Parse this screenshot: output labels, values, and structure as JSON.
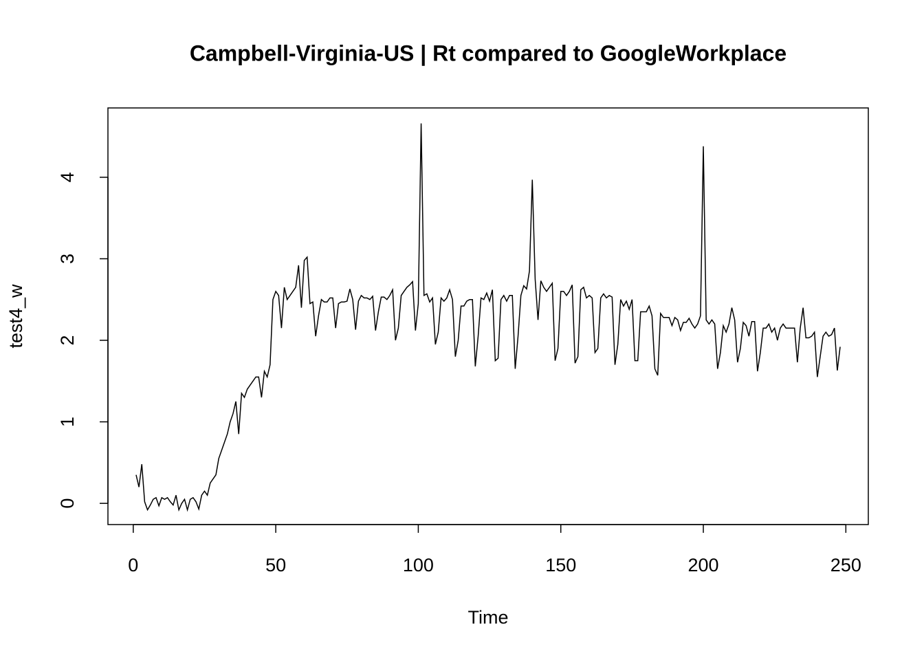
{
  "chart_data": {
    "type": "line",
    "title": "Campbell-Virginia-US | Rt compared to GoogleWorkplace",
    "x_label": "Time",
    "y_label": "test4_w",
    "color": "#000000",
    "xlim": [
      -8.88,
      257.88
    ],
    "ylim": [
      -0.26,
      4.85
    ],
    "xticks": [
      0,
      50,
      100,
      150,
      200,
      250
    ],
    "yticks": [
      0,
      1,
      2,
      3,
      4
    ],
    "x": [
      1,
      2,
      3,
      4,
      5,
      6,
      7,
      8,
      9,
      10,
      11,
      12,
      13,
      14,
      15,
      16,
      17,
      18,
      19,
      20,
      21,
      22,
      23,
      24,
      25,
      26,
      27,
      28,
      29,
      30,
      31,
      32,
      33,
      34,
      35,
      36,
      37,
      38,
      39,
      40,
      41,
      42,
      43,
      44,
      45,
      46,
      47,
      48,
      49,
      50,
      51,
      52,
      53,
      54,
      55,
      56,
      57,
      58,
      59,
      60,
      61,
      62,
      63,
      64,
      65,
      66,
      67,
      68,
      69,
      70,
      71,
      72,
      73,
      74,
      75,
      76,
      77,
      78,
      79,
      80,
      81,
      82,
      83,
      84,
      85,
      86,
      87,
      88,
      89,
      90,
      91,
      92,
      93,
      94,
      95,
      96,
      97,
      98,
      99,
      100,
      101,
      102,
      103,
      104,
      105,
      106,
      107,
      108,
      109,
      110,
      111,
      112,
      113,
      114,
      115,
      116,
      117,
      118,
      119,
      120,
      121,
      122,
      123,
      124,
      125,
      126,
      127,
      128,
      129,
      130,
      131,
      132,
      133,
      134,
      135,
      136,
      137,
      138,
      139,
      140,
      141,
      142,
      143,
      144,
      145,
      146,
      147,
      148,
      149,
      150,
      151,
      152,
      153,
      154,
      155,
      156,
      157,
      158,
      159,
      160,
      161,
      162,
      163,
      164,
      165,
      166,
      167,
      168,
      169,
      170,
      171,
      172,
      173,
      174,
      175,
      176,
      177,
      178,
      179,
      180,
      181,
      182,
      183,
      184,
      185,
      186,
      187,
      188,
      189,
      190,
      191,
      192,
      193,
      194,
      195,
      196,
      197,
      198,
      199,
      200,
      201,
      202,
      203,
      204,
      205,
      206,
      207,
      208,
      209,
      210,
      211,
      212,
      213,
      214,
      215,
      216,
      217,
      218,
      219,
      220,
      221,
      222,
      223,
      224,
      225,
      226,
      227,
      228,
      229,
      230,
      231,
      232,
      233,
      234,
      235,
      236,
      237,
      238,
      239,
      240,
      241,
      242,
      243,
      244,
      245,
      246,
      247,
      248
    ],
    "values": [
      0.35,
      0.2,
      0.48,
      0.02,
      -0.08,
      -0.02,
      0.05,
      0.07,
      -0.03,
      0.07,
      0.05,
      0.07,
      0.02,
      -0.02,
      0.1,
      -0.08,
      0.0,
      0.05,
      -0.08,
      0.05,
      0.07,
      0.02,
      -0.07,
      0.1,
      0.15,
      0.1,
      0.25,
      0.3,
      0.35,
      0.55,
      0.65,
      0.75,
      0.85,
      1.0,
      1.1,
      1.25,
      0.85,
      1.35,
      1.3,
      1.4,
      1.45,
      1.5,
      1.55,
      1.55,
      1.3,
      1.62,
      1.55,
      1.7,
      2.5,
      2.6,
      2.55,
      2.15,
      2.65,
      2.5,
      2.55,
      2.6,
      2.65,
      2.92,
      2.4,
      2.98,
      3.02,
      2.45,
      2.47,
      2.05,
      2.3,
      2.5,
      2.47,
      2.47,
      2.52,
      2.52,
      2.15,
      2.45,
      2.47,
      2.47,
      2.48,
      2.63,
      2.5,
      2.13,
      2.48,
      2.55,
      2.52,
      2.52,
      2.5,
      2.54,
      2.12,
      2.35,
      2.53,
      2.53,
      2.5,
      2.55,
      2.62,
      2.0,
      2.15,
      2.55,
      2.6,
      2.65,
      2.68,
      2.72,
      2.12,
      2.45,
      4.66,
      2.55,
      2.57,
      2.47,
      2.52,
      1.95,
      2.1,
      2.52,
      2.48,
      2.52,
      2.62,
      2.5,
      1.8,
      2.0,
      2.42,
      2.42,
      2.48,
      2.5,
      2.5,
      1.68,
      2.05,
      2.52,
      2.5,
      2.58,
      2.48,
      2.62,
      1.75,
      1.78,
      2.5,
      2.55,
      2.48,
      2.55,
      2.55,
      1.65,
      2.05,
      2.55,
      2.67,
      2.63,
      2.85,
      3.97,
      2.75,
      2.25,
      2.73,
      2.65,
      2.6,
      2.65,
      2.7,
      1.75,
      1.9,
      2.6,
      2.6,
      2.55,
      2.6,
      2.68,
      1.72,
      1.8,
      2.62,
      2.65,
      2.52,
      2.55,
      2.52,
      1.85,
      1.9,
      2.52,
      2.57,
      2.52,
      2.55,
      2.53,
      1.7,
      1.95,
      2.5,
      2.42,
      2.48,
      2.38,
      2.5,
      1.75,
      1.75,
      2.35,
      2.35,
      2.35,
      2.42,
      2.3,
      1.65,
      1.57,
      2.33,
      2.28,
      2.28,
      2.28,
      2.18,
      2.28,
      2.25,
      2.12,
      2.22,
      2.22,
      2.27,
      2.2,
      2.15,
      2.2,
      2.3,
      4.38,
      2.25,
      2.2,
      2.25,
      2.2,
      1.65,
      1.85,
      2.18,
      2.1,
      2.2,
      2.4,
      2.25,
      1.73,
      1.9,
      2.22,
      2.18,
      2.05,
      2.23,
      2.23,
      1.62,
      1.85,
      2.15,
      2.15,
      2.2,
      2.1,
      2.15,
      2.0,
      2.15,
      2.2,
      2.15,
      2.15,
      2.15,
      2.15,
      1.73,
      2.15,
      2.4,
      2.03,
      2.03,
      2.05,
      2.1,
      1.55,
      1.8,
      2.05,
      2.1,
      2.05,
      2.07,
      2.15,
      1.63,
      1.92
    ]
  }
}
